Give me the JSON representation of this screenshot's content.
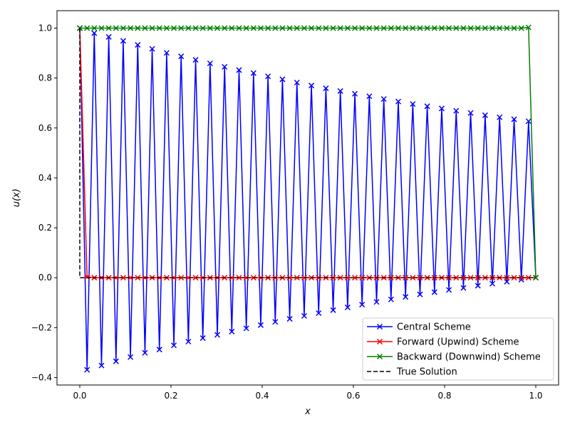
{
  "chart_data": {
    "type": "line",
    "title": "",
    "xlabel": "x",
    "ylabel": "u(x)",
    "xlim": [
      -0.05,
      1.05
    ],
    "ylim": [
      -0.43,
      1.07
    ],
    "x_ticks": [
      0.0,
      0.2,
      0.4,
      0.6,
      0.8,
      1.0
    ],
    "x_tick_labels": [
      "0.0",
      "0.2",
      "0.4",
      "0.6",
      "0.8",
      "1.0"
    ],
    "y_ticks": [
      -0.4,
      -0.2,
      0.0,
      0.2,
      0.4,
      0.6,
      0.8,
      1.0
    ],
    "y_tick_labels": [
      "−0.4",
      "−0.2",
      "0.0",
      "0.2",
      "0.4",
      "0.6",
      "0.8",
      "1.0"
    ],
    "grid": false,
    "legend_position": "lower-right",
    "series": [
      {
        "name": "Central Scheme",
        "color": "#0000ff",
        "marker": "x",
        "linestyle": "solid",
        "x": [
          0.0,
          0.0159,
          0.0317,
          0.0476,
          0.0635,
          0.0794,
          0.0952,
          0.1111,
          0.127,
          0.1429,
          0.1587,
          0.1746,
          0.1905,
          0.2063,
          0.2222,
          0.2381,
          0.254,
          0.2698,
          0.2857,
          0.3016,
          0.3175,
          0.3333,
          0.3492,
          0.3651,
          0.381,
          0.3968,
          0.4127,
          0.4286,
          0.4444,
          0.4603,
          0.4762,
          0.4921,
          0.5079,
          0.5238,
          0.5397,
          0.5556,
          0.5714,
          0.5873,
          0.6032,
          0.619,
          0.6349,
          0.6508,
          0.6667,
          0.6825,
          0.6984,
          0.7143,
          0.7302,
          0.746,
          0.7619,
          0.7778,
          0.7937,
          0.8095,
          0.8254,
          0.8413,
          0.8571,
          0.873,
          0.8889,
          0.9048,
          0.9206,
          0.9365,
          0.9524,
          0.9683,
          0.9841,
          1.0
        ],
        "y": [
          1.0,
          -0.369,
          0.98,
          -0.352,
          0.965,
          -0.335,
          0.949,
          -0.318,
          0.933,
          -0.301,
          0.917,
          -0.288,
          0.901,
          -0.271,
          0.887,
          -0.256,
          0.873,
          -0.242,
          0.859,
          -0.229,
          0.845,
          -0.216,
          0.832,
          -0.203,
          0.82,
          -0.19,
          0.807,
          -0.177,
          0.795,
          -0.165,
          0.782,
          -0.153,
          0.77,
          -0.142,
          0.759,
          -0.13,
          0.748,
          -0.119,
          0.737,
          -0.108,
          0.727,
          -0.097,
          0.716,
          -0.087,
          0.706,
          -0.077,
          0.696,
          -0.067,
          0.687,
          -0.058,
          0.678,
          -0.049,
          0.669,
          -0.041,
          0.66,
          -0.032,
          0.651,
          -0.024,
          0.643,
          -0.016,
          0.635,
          -0.008,
          0.627,
          0.0
        ]
      },
      {
        "name": "Forward (Upwind) Scheme",
        "color": "#ff0000",
        "marker": "x",
        "linestyle": "solid",
        "x": [
          0.0,
          0.0159,
          0.0317,
          0.0476,
          0.0635,
          0.0794,
          0.0952,
          0.1111,
          0.127,
          0.1429,
          0.1587,
          0.1746,
          0.1905,
          0.2063,
          0.2222,
          0.2381,
          0.254,
          0.2698,
          0.2857,
          0.3016,
          0.3175,
          0.3333,
          0.3492,
          0.3651,
          0.381,
          0.3968,
          0.4127,
          0.4286,
          0.4444,
          0.4603,
          0.4762,
          0.4921,
          0.5079,
          0.5238,
          0.5397,
          0.5556,
          0.5714,
          0.5873,
          0.6032,
          0.619,
          0.6349,
          0.6508,
          0.6667,
          0.6825,
          0.6984,
          0.7143,
          0.7302,
          0.746,
          0.7619,
          0.7778,
          0.7937,
          0.8095,
          0.8254,
          0.8413,
          0.8571,
          0.873,
          0.8889,
          0.9048,
          0.9206,
          0.9365,
          0.9524,
          0.9683,
          0.9841,
          1.0
        ],
        "y": [
          1.0,
          0.003,
          0.0,
          0.0,
          0.0,
          0.0,
          0.0,
          0.0,
          0.0,
          0.0,
          0.0,
          0.0,
          0.0,
          0.0,
          0.0,
          0.0,
          0.0,
          0.0,
          0.0,
          0.0,
          0.0,
          0.0,
          0.0,
          0.0,
          0.0,
          0.0,
          0.0,
          0.0,
          0.0,
          0.0,
          0.0,
          0.0,
          0.0,
          0.0,
          0.0,
          0.0,
          0.0,
          0.0,
          0.0,
          0.0,
          0.0,
          0.0,
          0.0,
          0.0,
          0.0,
          0.0,
          0.0,
          0.0,
          0.0,
          0.0,
          0.0,
          0.0,
          0.0,
          0.0,
          0.0,
          0.0,
          0.0,
          0.0,
          0.0,
          0.0,
          0.0,
          0.0,
          0.0,
          0.0
        ]
      },
      {
        "name": "Backward (Downwind) Scheme",
        "color": "#008000",
        "marker": "x",
        "linestyle": "solid",
        "x": [
          0.0,
          0.0159,
          0.0317,
          0.0476,
          0.0635,
          0.0794,
          0.0952,
          0.1111,
          0.127,
          0.1429,
          0.1587,
          0.1746,
          0.1905,
          0.2063,
          0.2222,
          0.2381,
          0.254,
          0.2698,
          0.2857,
          0.3016,
          0.3175,
          0.3333,
          0.3492,
          0.3651,
          0.381,
          0.3968,
          0.4127,
          0.4286,
          0.4444,
          0.4603,
          0.4762,
          0.4921,
          0.5079,
          0.5238,
          0.5397,
          0.5556,
          0.5714,
          0.5873,
          0.6032,
          0.619,
          0.6349,
          0.6508,
          0.6667,
          0.6825,
          0.6984,
          0.7143,
          0.7302,
          0.746,
          0.7619,
          0.7778,
          0.7937,
          0.8095,
          0.8254,
          0.8413,
          0.8571,
          0.873,
          0.8889,
          0.9048,
          0.9206,
          0.9365,
          0.9524,
          0.9683,
          0.9841,
          1.0
        ],
        "y": [
          1.0,
          1.0,
          1.0,
          1.0,
          1.0,
          1.0,
          1.0,
          1.0,
          1.0,
          1.0,
          1.0,
          1.0,
          1.0,
          1.0,
          1.0,
          1.0,
          1.0,
          1.0,
          1.0,
          1.0,
          1.0,
          1.0,
          1.0,
          1.0,
          1.0,
          1.0,
          1.0,
          1.0,
          1.0,
          1.0,
          1.0,
          1.0,
          1.0,
          1.0,
          1.0,
          1.0,
          1.0,
          1.0,
          1.0,
          1.0,
          1.0,
          1.0,
          1.0,
          1.0,
          1.0,
          1.0,
          1.0,
          1.0,
          1.0,
          1.0,
          1.0,
          1.0,
          1.0,
          1.0,
          1.0,
          1.0,
          1.0,
          1.0,
          1.0,
          1.0,
          1.0,
          1.0,
          1.003,
          0.0
        ]
      },
      {
        "name": "True Solution",
        "color": "#000000",
        "marker": "none",
        "linestyle": "dashed",
        "x": [
          0.0,
          0.0,
          1.0
        ],
        "y": [
          1.0,
          0.0,
          0.0
        ]
      }
    ]
  }
}
